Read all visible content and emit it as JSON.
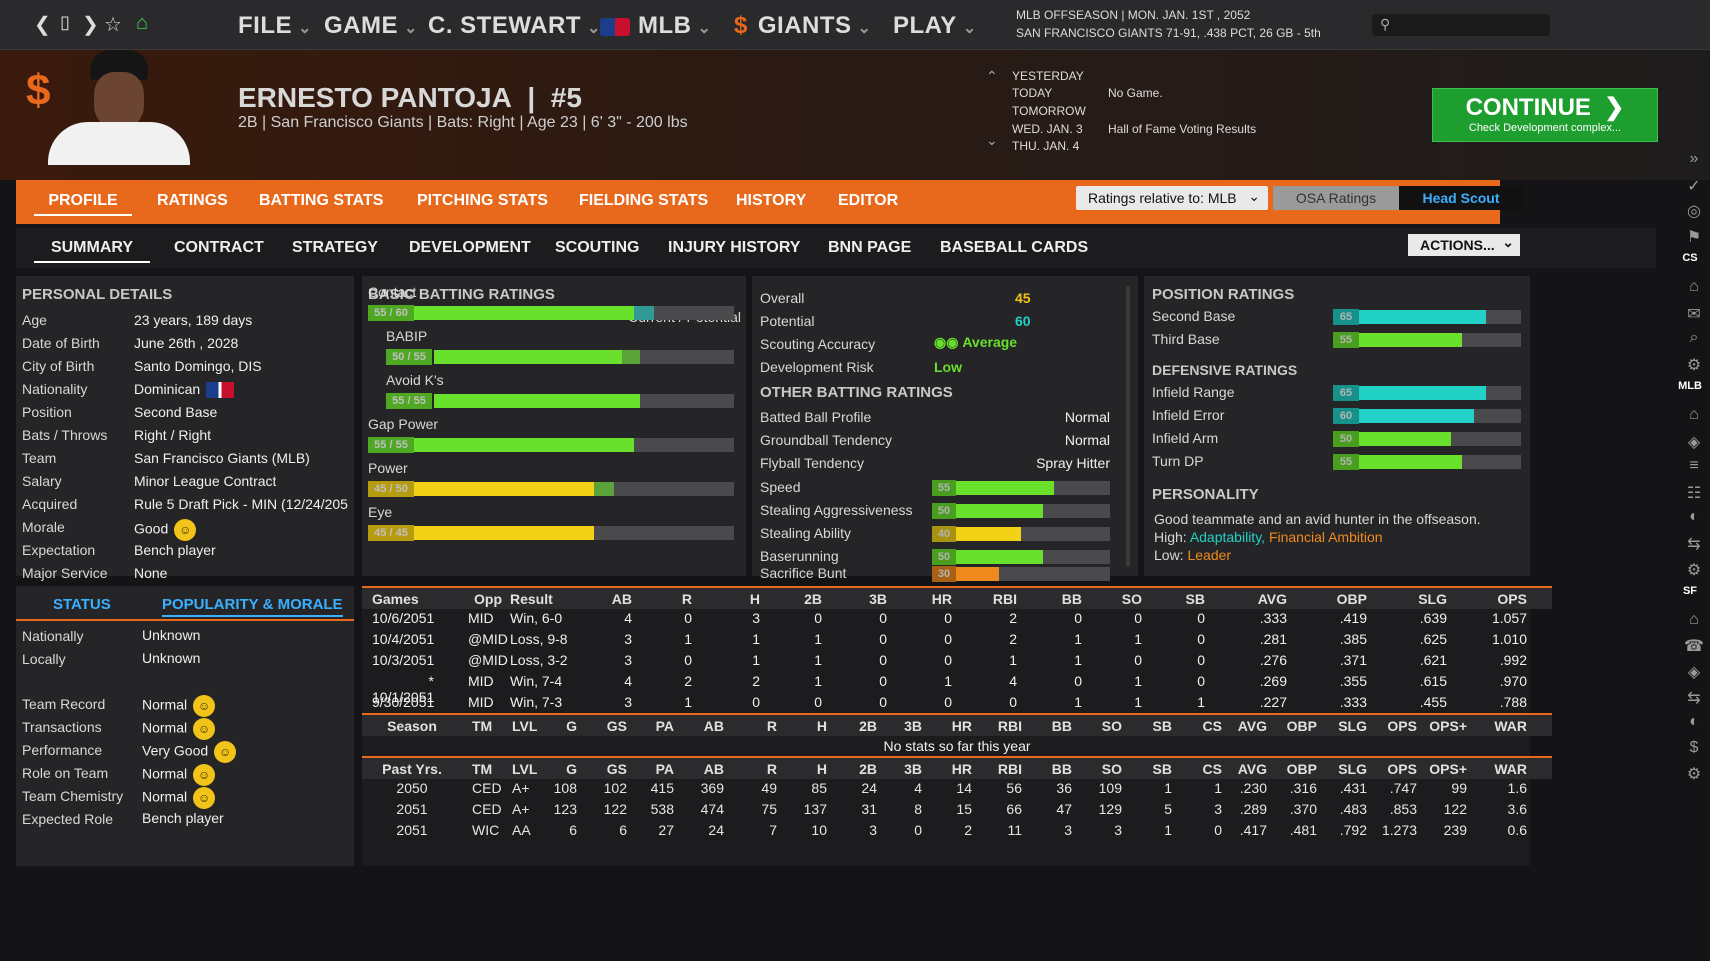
{
  "topbar": {
    "menus": [
      "FILE",
      "GAME",
      "C. STEWART",
      "MLB",
      "GIANTS",
      "PLAY"
    ],
    "league_date": "MLB OFFSEASON  |  MON. JAN. 1ST , 2052",
    "team_record": "SAN FRANCISCO GIANTS  71-91, .438 PCT, 26 GB - 5th"
  },
  "player": {
    "name": "ERNESTO PANTOJA",
    "number": "#5",
    "info": "2B | San Francisco Giants  |  Bats: Right  |  Age 23  |  6' 3\"  - 200 lbs"
  },
  "schedule": {
    "rows": [
      {
        "day": "YESTERDAY",
        "event": ""
      },
      {
        "day": "TODAY",
        "event": "No Game."
      },
      {
        "day": "TOMORROW",
        "event": ""
      },
      {
        "day": "WED. JAN. 3",
        "event": "Hall of Fame Voting Results"
      },
      {
        "day": "THU. JAN. 4",
        "event": ""
      }
    ]
  },
  "continue": {
    "label": "CONTINUE",
    "sub": "Check Development complex..."
  },
  "tabs1": [
    "PROFILE",
    "RATINGS",
    "BATTING STATS",
    "PITCHING STATS",
    "FIELDING STATS",
    "HISTORY",
    "EDITOR"
  ],
  "ratings_rel": "Ratings relative to: MLB",
  "osa_label": "OSA Ratings",
  "scout_label": "Head Scout",
  "tabs2": [
    "SUMMARY",
    "CONTRACT",
    "STRATEGY",
    "DEVELOPMENT",
    "SCOUTING",
    "INJURY HISTORY",
    "BNN PAGE",
    "BASEBALL CARDS"
  ],
  "actions_label": "ACTIONS...",
  "personal": {
    "title": "PERSONAL DETAILS",
    "rows": [
      [
        "Age",
        "23 years, 189 days"
      ],
      [
        "Date of Birth",
        "June 26th , 2028"
      ],
      [
        "City of Birth",
        "Santo Domingo, DIS"
      ],
      [
        "Nationality",
        "Dominican"
      ],
      [
        "Position",
        "Second Base"
      ],
      [
        "Bats / Throws",
        "Right / Right"
      ],
      [
        "Team",
        "San Francisco Giants (MLB)"
      ],
      [
        "Salary",
        "Minor League Contract"
      ],
      [
        "Acquired",
        "Rule 5 Draft Pick - MIN (12/24/205"
      ],
      [
        "Morale",
        "Good"
      ],
      [
        "Expectation",
        "Bench player"
      ],
      [
        "Major Service",
        "None"
      ]
    ]
  },
  "status_tabs": [
    "STATUS",
    "POPULARITY & MORALE"
  ],
  "popularity": {
    "rows": [
      [
        "Nationally",
        "Unknown"
      ],
      [
        "Locally",
        "Unknown"
      ]
    ],
    "morale": [
      [
        "Team Record",
        "Normal"
      ],
      [
        "Transactions",
        "Normal"
      ],
      [
        "Performance",
        "Very Good"
      ],
      [
        "Role on Team",
        "Normal"
      ],
      [
        "Team Chemistry",
        "Normal"
      ],
      [
        "Expected Role",
        "Bench player"
      ]
    ]
  },
  "batting": {
    "title": "BASIC BATTING RATINGS",
    "header_right": "Current / Potential",
    "rows": [
      {
        "label": "Contact",
        "badge": "55 / 60",
        "cur": 55,
        "pot": 60,
        "indent": false
      },
      {
        "label": "BABIP",
        "badge": "50 / 55",
        "cur": 50,
        "pot": 55,
        "indent": true
      },
      {
        "label": "Avoid K's",
        "badge": "55 / 55",
        "cur": 55,
        "pot": 55,
        "indent": true
      },
      {
        "label": "Gap Power",
        "badge": "55 / 55",
        "cur": 55,
        "pot": 55,
        "indent": false
      },
      {
        "label": "Power",
        "badge": "45 / 50",
        "cur": 45,
        "pot": 50,
        "indent": false
      },
      {
        "label": "Eye",
        "badge": "45 / 45",
        "cur": 45,
        "pot": 45,
        "indent": false
      }
    ]
  },
  "overall": {
    "rows": [
      [
        "Overall",
        "45"
      ],
      [
        "Potential",
        "60"
      ],
      [
        "Scouting Accuracy",
        "Average"
      ],
      [
        "Development Risk",
        "Low"
      ]
    ]
  },
  "other_batting": {
    "title": "OTHER BATTING RATINGS",
    "rows": [
      [
        "Batted Ball Profile",
        "Normal"
      ],
      [
        "Groundball Tendency",
        "Normal"
      ],
      [
        "Flyball Tendency",
        "Spray Hitter"
      ]
    ],
    "bars": [
      [
        "Speed",
        "55"
      ],
      [
        "Stealing Aggressiveness",
        "50"
      ],
      [
        "Stealing Ability",
        "40"
      ],
      [
        "Baserunning",
        "50"
      ],
      [
        "Sacrifice Bunt",
        "30"
      ]
    ]
  },
  "position": {
    "title": "POSITION RATINGS",
    "rows": [
      [
        "Second Base",
        "65"
      ],
      [
        "Third Base",
        "55"
      ]
    ],
    "def_title": "DEFENSIVE RATINGS",
    "def": [
      [
        "Infield Range",
        "65"
      ],
      [
        "Infield Error",
        "60"
      ],
      [
        "Infield Arm",
        "50"
      ],
      [
        "Turn DP",
        "55"
      ]
    ]
  },
  "personality": {
    "title": "PERSONALITY",
    "text": "Good teammate and an avid hunter in the offseason.",
    "high_label": "High:",
    "high1": "Adaptability,",
    "high2": "Financial Ambition",
    "low_label": "Low:",
    "low1": "Leader"
  },
  "games": {
    "headers": [
      "Games",
      "Opp",
      "Result",
      "AB",
      "R",
      "H",
      "2B",
      "3B",
      "HR",
      "RBI",
      "BB",
      "SO",
      "SB",
      "AVG",
      "OBP",
      "SLG",
      "OPS"
    ],
    "rows": [
      [
        "10/6/2051",
        "MID",
        "Win, 6-0",
        "4",
        "0",
        "3",
        "0",
        "0",
        "0",
        "2",
        "0",
        "0",
        "0",
        ".333",
        ".419",
        ".639",
        "1.057"
      ],
      [
        "10/4/2051",
        "@MID",
        "Loss, 9-8",
        "3",
        "1",
        "1",
        "1",
        "0",
        "0",
        "2",
        "1",
        "1",
        "0",
        ".281",
        ".385",
        ".625",
        "1.010"
      ],
      [
        "10/3/2051",
        "@MID",
        "Loss, 3-2",
        "3",
        "0",
        "1",
        "1",
        "0",
        "0",
        "1",
        "1",
        "0",
        "0",
        ".276",
        ".371",
        ".621",
        ".992"
      ],
      [
        "* 10/1/2051",
        "MID",
        "Win, 7-4",
        "4",
        "2",
        "2",
        "1",
        "0",
        "1",
        "4",
        "0",
        "1",
        "0",
        ".269",
        ".355",
        ".615",
        ".970"
      ],
      [
        "9/30/2051",
        "MID",
        "Win, 7-3",
        "3",
        "1",
        "0",
        "0",
        "0",
        "0",
        "0",
        "1",
        "1",
        "1",
        ".227",
        ".333",
        ".455",
        ".788"
      ]
    ]
  },
  "season": {
    "headers": [
      "Season",
      "TM",
      "LVL",
      "G",
      "GS",
      "PA",
      "AB",
      "R",
      "H",
      "2B",
      "3B",
      "HR",
      "RBI",
      "BB",
      "SO",
      "SB",
      "CS",
      "AVG",
      "OBP",
      "SLG",
      "OPS",
      "OPS+",
      "WAR"
    ],
    "empty": "No stats so far this year"
  },
  "past": {
    "headers": [
      "Past Yrs.",
      "TM",
      "LVL",
      "G",
      "GS",
      "PA",
      "AB",
      "R",
      "H",
      "2B",
      "3B",
      "HR",
      "RBI",
      "BB",
      "SO",
      "SB",
      "CS",
      "AVG",
      "OBP",
      "SLG",
      "OPS",
      "OPS+",
      "WAR"
    ],
    "rows": [
      [
        "2050",
        "CED",
        "A+",
        "108",
        "102",
        "415",
        "369",
        "49",
        "85",
        "24",
        "4",
        "14",
        "56",
        "36",
        "109",
        "1",
        "1",
        ".230",
        ".316",
        ".431",
        ".747",
        "99",
        "1.6"
      ],
      [
        "2051",
        "CED",
        "A+",
        "123",
        "122",
        "538",
        "474",
        "75",
        "137",
        "31",
        "8",
        "15",
        "66",
        "47",
        "129",
        "5",
        "3",
        ".289",
        ".370",
        ".483",
        ".853",
        "122",
        "3.6"
      ],
      [
        "2051",
        "WIC",
        "AA",
        "6",
        "6",
        "27",
        "24",
        "7",
        "10",
        "3",
        "0",
        "2",
        "11",
        "3",
        "3",
        "1",
        "0",
        ".417",
        ".481",
        ".792",
        "1.273",
        "239",
        "0.6"
      ]
    ]
  },
  "sidebar_labels": [
    "CS",
    "MLB",
    "SF"
  ]
}
